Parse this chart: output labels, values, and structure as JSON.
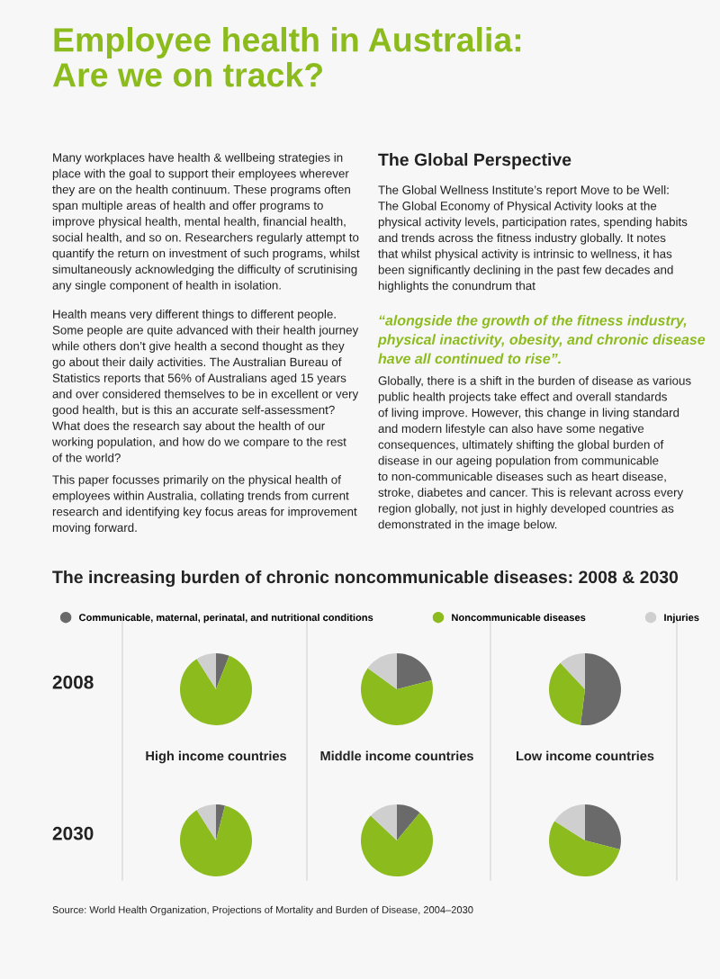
{
  "chart_data": [
    {
      "type": "other",
      "title": "Employee health in Australia:\nAre we on track?",
      "annotations": [
        "Many workplaces have health & wellbeing strategies in\nplace with the goal to support their employees wherever\nthey are on the health continuum. These programs often\nspan multiple areas of health and offer programs to\nimprove physical health, mental health, financial health,\nsocial health, and so on. Researchers regularly attempt to\nquantify the return on investment of such programs, whilst\nsimultaneously acknowledging the difficulty of scrutinising\nany single component of health in isolation.",
        "Health means very different things to different people.\nSome people are quite advanced with their health journey\nwhile others don’t give health a second thought as they\ngo about their daily activities. The Australian Bureau of\nStatistics reports that 56% of Australians aged 15 years\nand over considered themselves to be in excellent or very\ngood health, but is this an accurate self-assessment?\nWhat does the research say about the health of our\nworking population, and how do we compare to the rest\nof the world?",
        "This paper focusses primarily on the physical health of\nemployees within Australia, collating trends from current\nresearch and identifying key focus areas for improvement\nmoving forward.",
        "The Global Perspective",
        "The Global Wellness Institute’s report Move to be Well:\nThe Global Economy of Physical Activity looks at the\nphysical activity levels, participation rates, spending habits\nand trends across the fitness industry globally. It notes\nthat whilst physical activity is intrinsic to wellness, it has\nbeen significantly declining in the past few decades and\nhighlights the conundrum that",
        "“alongside the growth of the fitness industry,\nphysical inactivity, obesity, and chronic disease\nhave all continued to rise”.",
        "Globally, there is a shift in the burden of disease as various\npublic health projects take effect and overall standards\nof living improve. However, this change in living standard\nand modern lifestyle can also have some negative\nconsequences, ultimately shifting the global burden of\ndisease in our ageing population from communicable\nto non-communicable diseases such as heart disease,\nstroke, diabetes and cancer. This is relevant across every\nregion globally, not just in highly developed countries as\ndemonstrated in the image below."
      ]
    },
    {
      "type": "pie",
      "title": "The increasing burden of chronic noncommunicable diseases: 2008 & 2030",
      "ylabel": "2008",
      "legend": "top",
      "categories": [
        "Communicable, maternal, perinatal, and nutritional conditions",
        "Noncommunicable diseases",
        "Injuries"
      ],
      "values": [
        6,
        85,
        9
      ],
      "colors": [
        "#6b6a6b",
        "#8cbb1e",
        "#cfcfcf"
      ]
    },
    {
      "type": "pie",
      "values": [
        21,
        64,
        15
      ],
      "colors": [
        "#6b6a6b",
        "#8cbb1e",
        "#cfcfcf"
      ]
    },
    {
      "type": "pie",
      "values": [
        52,
        36,
        12
      ],
      "colors": [
        "#6b6a6b",
        "#8cbb1e",
        "#cfcfcf"
      ]
    },
    {
      "type": "pie",
      "title": "High income countries",
      "ylabel": "2030",
      "values": [
        4,
        87,
        9
      ],
      "colors": [
        "#6b6a6b",
        "#8cbb1e",
        "#cfcfcf"
      ]
    },
    {
      "type": "pie",
      "title": "Middle income countries",
      "values": [
        11,
        76,
        13
      ],
      "colors": [
        "#6b6a6b",
        "#8cbb1e",
        "#cfcfcf"
      ]
    },
    {
      "type": "pie",
      "title": "Low income countries",
      "values": [
        29,
        55,
        16
      ],
      "colors": [
        "#6b6a6b",
        "#8cbb1e",
        "#cfcfcf"
      ],
      "annotations": [
        "Source: World Health Organization, Projections of Mortality and Burden of Disease, 2004–2030"
      ]
    }
  ]
}
